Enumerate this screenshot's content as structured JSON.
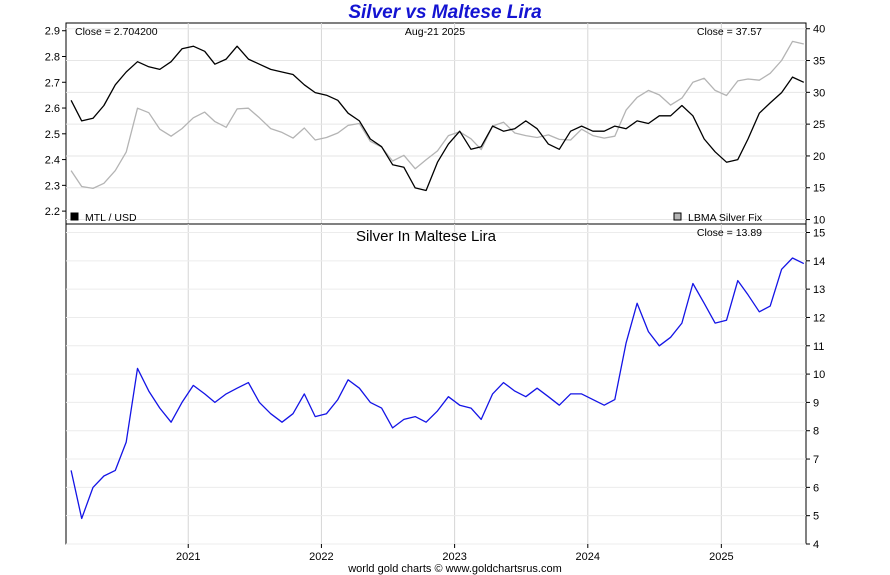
{
  "page": {
    "title": "Silver vs Maltese Lira",
    "footer": "world gold charts © www.goldchartsrus.com"
  },
  "chart_data": [
    {
      "type": "line",
      "panel": "top",
      "title": "",
      "date_label": "Aug-21  2025",
      "close_left": "Close = 2.704200",
      "close_right": "Close = 37.57",
      "x": [
        "2020-02",
        "2020-03",
        "2020-04",
        "2020-05",
        "2020-06",
        "2020-07",
        "2020-08",
        "2020-09",
        "2020-10",
        "2020-11",
        "2020-12",
        "2021-01",
        "2021-02",
        "2021-03",
        "2021-04",
        "2021-05",
        "2021-06",
        "2021-07",
        "2021-08",
        "2021-09",
        "2021-10",
        "2021-11",
        "2021-12",
        "2022-01",
        "2022-02",
        "2022-03",
        "2022-04",
        "2022-05",
        "2022-06",
        "2022-07",
        "2022-08",
        "2022-09",
        "2022-10",
        "2022-11",
        "2022-12",
        "2023-01",
        "2023-02",
        "2023-03",
        "2023-04",
        "2023-05",
        "2023-06",
        "2023-07",
        "2023-08",
        "2023-09",
        "2023-10",
        "2023-11",
        "2023-12",
        "2024-01",
        "2024-02",
        "2024-03",
        "2024-04",
        "2024-05",
        "2024-06",
        "2024-07",
        "2024-08",
        "2024-09",
        "2024-10",
        "2024-11",
        "2024-12",
        "2025-01",
        "2025-02",
        "2025-03",
        "2025-04",
        "2025-05",
        "2025-06",
        "2025-07",
        "2025-08"
      ],
      "x_ticks": [
        "2021",
        "2022",
        "2023",
        "2024",
        "2025"
      ],
      "x_range": [
        "2020-02-01",
        "2025-08-21"
      ],
      "series": [
        {
          "name": "MTL / USD",
          "axis": "left",
          "color": "#000000",
          "values": [
            2.63,
            2.55,
            2.56,
            2.61,
            2.69,
            2.74,
            2.78,
            2.76,
            2.75,
            2.78,
            2.83,
            2.84,
            2.82,
            2.77,
            2.79,
            2.84,
            2.79,
            2.77,
            2.75,
            2.74,
            2.73,
            2.69,
            2.66,
            2.65,
            2.63,
            2.58,
            2.55,
            2.48,
            2.45,
            2.38,
            2.37,
            2.29,
            2.28,
            2.39,
            2.46,
            2.51,
            2.44,
            2.45,
            2.53,
            2.51,
            2.52,
            2.55,
            2.52,
            2.46,
            2.44,
            2.51,
            2.53,
            2.51,
            2.51,
            2.53,
            2.52,
            2.55,
            2.54,
            2.57,
            2.57,
            2.61,
            2.57,
            2.48,
            2.43,
            2.39,
            2.4,
            2.48,
            2.58,
            2.62,
            2.66,
            2.72,
            2.7
          ]
        },
        {
          "name": "LBMA Silver Fix",
          "axis": "right",
          "color": "#b4b4b4",
          "values": [
            17.7,
            15.2,
            14.9,
            15.7,
            17.7,
            20.6,
            27.5,
            26.8,
            24.2,
            23.1,
            24.3,
            26.0,
            26.9,
            25.4,
            24.5,
            27.4,
            27.5,
            26.0,
            24.3,
            23.7,
            22.8,
            24.4,
            22.5,
            22.9,
            23.6,
            24.8,
            25.1,
            22.3,
            21.4,
            19.2,
            20.1,
            18.0,
            19.4,
            20.8,
            23.2,
            23.8,
            22.7,
            21.0,
            24.7,
            25.3,
            23.6,
            23.2,
            22.9,
            23.3,
            22.6,
            22.5,
            24.2,
            23.2,
            22.8,
            23.1,
            27.2,
            29.2,
            30.3,
            29.6,
            28.0,
            29.1,
            31.6,
            32.2,
            30.3,
            29.5,
            31.8,
            32.1,
            31.9,
            33.0,
            35.0,
            38.0,
            37.6
          ]
        }
      ],
      "left_axis": {
        "ylim": [
          2.15,
          2.93
        ],
        "ticks": [
          "2.2",
          "2.3",
          "2.4",
          "2.5",
          "2.6",
          "2.7",
          "2.8",
          "2.9"
        ]
      },
      "right_axis": {
        "ylim": [
          9.3,
          40.9
        ],
        "ticks": [
          "10",
          "15",
          "20",
          "25",
          "30",
          "35",
          "40"
        ]
      },
      "legend": [
        {
          "label": "MTL / USD",
          "swatch": "#000000",
          "position": "bottom-left"
        },
        {
          "label": "LBMA Silver Fix",
          "swatch": "#b4b4b4",
          "position": "bottom-right"
        }
      ],
      "grid": true
    },
    {
      "type": "line",
      "panel": "bottom",
      "title": "Silver In Maltese Lira",
      "close_right": "Close = 13.89",
      "x": [
        "2020-02",
        "2020-03",
        "2020-04",
        "2020-05",
        "2020-06",
        "2020-07",
        "2020-08",
        "2020-09",
        "2020-10",
        "2020-11",
        "2020-12",
        "2021-01",
        "2021-02",
        "2021-03",
        "2021-04",
        "2021-05",
        "2021-06",
        "2021-07",
        "2021-08",
        "2021-09",
        "2021-10",
        "2021-11",
        "2021-12",
        "2022-01",
        "2022-02",
        "2022-03",
        "2022-04",
        "2022-05",
        "2022-06",
        "2022-07",
        "2022-08",
        "2022-09",
        "2022-10",
        "2022-11",
        "2022-12",
        "2023-01",
        "2023-02",
        "2023-03",
        "2023-04",
        "2023-05",
        "2023-06",
        "2023-07",
        "2023-08",
        "2023-09",
        "2023-10",
        "2023-11",
        "2023-12",
        "2024-01",
        "2024-02",
        "2024-03",
        "2024-04",
        "2024-05",
        "2024-06",
        "2024-07",
        "2024-08",
        "2024-09",
        "2024-10",
        "2024-11",
        "2024-12",
        "2025-01",
        "2025-02",
        "2025-03",
        "2025-04",
        "2025-05",
        "2025-06",
        "2025-07",
        "2025-08"
      ],
      "x_ticks": [
        "2021",
        "2022",
        "2023",
        "2024",
        "2025"
      ],
      "x_range": [
        "2020-02-01",
        "2025-08-21"
      ],
      "series": [
        {
          "name": "",
          "axis": "right",
          "color": "#1414e6",
          "values": [
            6.6,
            4.9,
            6.0,
            6.4,
            6.6,
            7.6,
            10.2,
            9.4,
            8.8,
            8.3,
            9.0,
            9.6,
            9.3,
            9.0,
            9.3,
            9.5,
            9.7,
            9.0,
            8.6,
            8.3,
            8.6,
            9.3,
            8.5,
            8.6,
            9.1,
            9.8,
            9.5,
            9.0,
            8.8,
            8.1,
            8.4,
            8.5,
            8.3,
            8.7,
            9.2,
            8.9,
            8.8,
            8.4,
            9.3,
            9.7,
            9.4,
            9.2,
            9.5,
            9.2,
            8.9,
            9.3,
            9.3,
            9.1,
            8.9,
            9.1,
            11.1,
            12.5,
            11.5,
            11.0,
            11.3,
            11.8,
            13.2,
            12.5,
            11.8,
            11.9,
            13.3,
            12.8,
            12.2,
            12.4,
            13.7,
            14.1,
            13.9
          ]
        }
      ],
      "right_axis": {
        "ylim": [
          4,
          15.3
        ],
        "ticks": [
          "4",
          "5",
          "6",
          "7",
          "8",
          "9",
          "10",
          "11",
          "12",
          "13",
          "14",
          "15"
        ]
      },
      "grid": true
    }
  ]
}
